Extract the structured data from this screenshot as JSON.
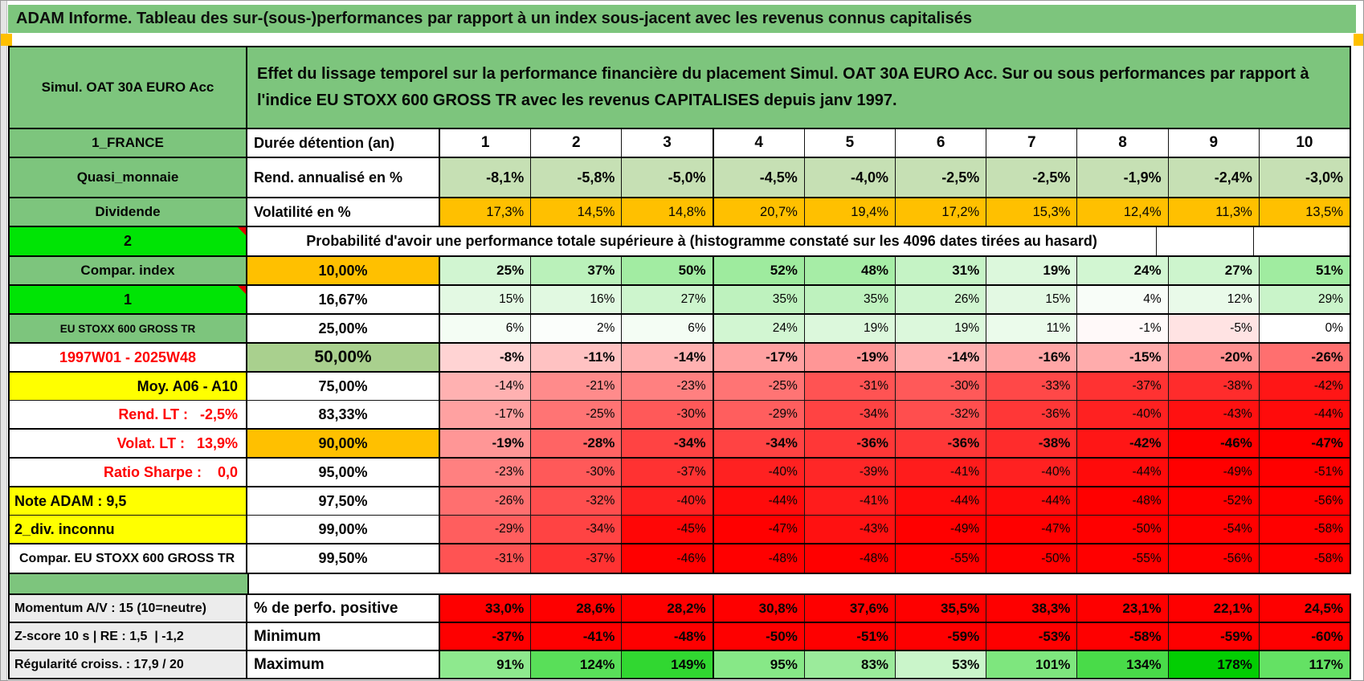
{
  "app": {
    "title": "ADAM Informe. Tableau des sur-(sous-)performances par rapport à un index sous-jacent avec les revenus connus capitalisés"
  },
  "colors": {
    "band_green": "#7dc57d",
    "bright_green": "#00e405",
    "orange": "#ffc000",
    "yellow": "#ffff00",
    "sage_green": "#c6e0b4",
    "mid_green": "#a9d08e",
    "full_red": "#fe0000",
    "gray_label": "#ececec",
    "red_text": "#fe0000"
  },
  "header": {
    "product": "Simul. OAT 30A EURO Acc",
    "description": "Effet du lissage temporel sur la performance financière du placement Simul. OAT 30A EURO Acc. Sur ou sous performances par rapport à l'indice EU STOXX 600 GROSS TR avec les revenus CAPITALISES depuis janv 1997."
  },
  "columns": {
    "region": "1_FRANCE",
    "duration_label": "Durée détention (an)",
    "numbers": [
      "1",
      "2",
      "3",
      "4",
      "5",
      "6",
      "7",
      "8",
      "9",
      "10"
    ]
  },
  "metrics": [
    {
      "row_header": "Quasi_monnaie",
      "label": "Rend. annualisé en %",
      "values": [
        "-8,1%",
        "-5,8%",
        "-5,0%",
        "-4,5%",
        "-4,0%",
        "-2,5%",
        "-2,5%",
        "-1,9%",
        "-2,4%",
        "-3,0%"
      ]
    },
    {
      "row_header": "Dividende",
      "label": "Volatilité en %",
      "values": [
        "17,3%",
        "14,5%",
        "14,8%",
        "20,7%",
        "19,4%",
        "17,2%",
        "15,3%",
        "12,4%",
        "11,3%",
        "13,5%"
      ]
    }
  ],
  "probability": {
    "corner_value": "2",
    "band_text": "Probabilité d'avoir une performance totale supérieure à (histogramme constaté sur les 4096 dates tirées au hasard)",
    "rows": [
      {
        "row_header": "Compar. index",
        "header_style": "green",
        "comment": false,
        "threshold": "10,00%",
        "threshold_style": "orange",
        "bold": true,
        "values": [
          "25%",
          "37%",
          "50%",
          "52%",
          "48%",
          "31%",
          "19%",
          "24%",
          "27%",
          "51%"
        ]
      },
      {
        "row_header": "1",
        "header_style": "bright",
        "comment": true,
        "threshold": "16,67%",
        "threshold_style": "white",
        "bold": false,
        "values": [
          "15%",
          "16%",
          "27%",
          "35%",
          "35%",
          "26%",
          "15%",
          "4%",
          "12%",
          "29%"
        ]
      },
      {
        "row_header": "EU STOXX 600 GROSS TR",
        "header_style": "green-sm",
        "comment": false,
        "threshold": "25,00%",
        "threshold_style": "white",
        "bold": false,
        "values": [
          "6%",
          "2%",
          "6%",
          "24%",
          "19%",
          "19%",
          "11%",
          "-1%",
          "-5%",
          "0%"
        ]
      },
      {
        "row_header": "1997W01 - 2025W48",
        "header_style": "red-center",
        "comment": false,
        "threshold": "50,00%",
        "threshold_style": "mid",
        "bold": true,
        "values": [
          "-8%",
          "-11%",
          "-14%",
          "-17%",
          "-19%",
          "-14%",
          "-16%",
          "-15%",
          "-20%",
          "-26%"
        ]
      },
      {
        "row_header": "Moy. A06 - A10",
        "header_style": "yellow-right",
        "comment": false,
        "threshold": "75,00%",
        "threshold_style": "white",
        "bold": false,
        "values": [
          "-14%",
          "-21%",
          "-23%",
          "-25%",
          "-31%",
          "-30%",
          "-33%",
          "-37%",
          "-38%",
          "-42%"
        ]
      },
      {
        "row_header": "Rend. LT :   -2,5%",
        "header_style": "red-right",
        "comment": false,
        "threshold": "83,33%",
        "threshold_style": "white",
        "bold": false,
        "values": [
          "-17%",
          "-25%",
          "-30%",
          "-29%",
          "-34%",
          "-32%",
          "-36%",
          "-40%",
          "-43%",
          "-44%"
        ]
      },
      {
        "row_header": "Volat. LT :   13,9%",
        "header_style": "red-right",
        "comment": false,
        "threshold": "90,00%",
        "threshold_style": "orange",
        "bold": true,
        "values": [
          "-19%",
          "-28%",
          "-34%",
          "-34%",
          "-36%",
          "-36%",
          "-38%",
          "-42%",
          "-46%",
          "-47%"
        ]
      },
      {
        "row_header": "Ratio Sharpe :    0,0",
        "header_style": "red-right",
        "comment": false,
        "threshold": "95,00%",
        "threshold_style": "white",
        "bold": false,
        "values": [
          "-23%",
          "-30%",
          "-37%",
          "-40%",
          "-39%",
          "-41%",
          "-40%",
          "-44%",
          "-49%",
          "-51%"
        ]
      },
      {
        "row_header": "Note ADAM : 9,5",
        "header_style": "yellow-left",
        "comment": false,
        "threshold": "97,50%",
        "threshold_style": "white",
        "bold": false,
        "values": [
          "-26%",
          "-32%",
          "-40%",
          "-44%",
          "-41%",
          "-44%",
          "-44%",
          "-48%",
          "-52%",
          "-56%"
        ]
      },
      {
        "row_header": "2_div. inconnu",
        "header_style": "yellow-left",
        "comment": false,
        "threshold": "99,00%",
        "threshold_style": "white",
        "bold": false,
        "values": [
          "-29%",
          "-34%",
          "-45%",
          "-47%",
          "-43%",
          "-49%",
          "-47%",
          "-50%",
          "-54%",
          "-58%"
        ]
      },
      {
        "row_header": "Compar. EU STOXX 600 GROSS TR",
        "header_style": "white-left",
        "comment": false,
        "threshold": "99,50%",
        "threshold_style": "white",
        "bold": false,
        "values": [
          "-31%",
          "-37%",
          "-46%",
          "-48%",
          "-48%",
          "-55%",
          "-50%",
          "-55%",
          "-56%",
          "-58%"
        ]
      }
    ]
  },
  "summary": [
    {
      "indicator": "Momentum A/V : 15 (10=neutre)",
      "metric": "% de perfo. positive",
      "scale": "red",
      "values": [
        "33,0%",
        "28,6%",
        "28,2%",
        "30,8%",
        "37,6%",
        "35,5%",
        "38,3%",
        "23,1%",
        "22,1%",
        "24,5%"
      ]
    },
    {
      "indicator": "Z-score 10 s | RE : 1,5  | -1,2",
      "metric": "Minimum",
      "scale": "red",
      "values": [
        "-37%",
        "-41%",
        "-48%",
        "-50%",
        "-51%",
        "-59%",
        "-53%",
        "-58%",
        "-59%",
        "-60%"
      ]
    },
    {
      "indicator": "Régularité croiss. : 17,9 / 20",
      "metric": "Maximum",
      "scale": "greenmax",
      "values": [
        "91%",
        "124%",
        "149%",
        "95%",
        "83%",
        "53%",
        "101%",
        "134%",
        "178%",
        "117%"
      ]
    }
  ]
}
